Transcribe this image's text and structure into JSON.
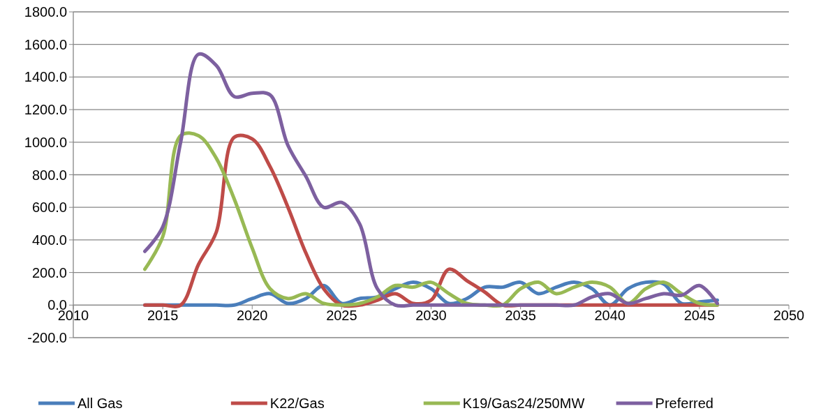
{
  "chart_data": {
    "type": "line",
    "x": [
      2014,
      2015,
      2016,
      2017,
      2018,
      2019,
      2020,
      2021,
      2022,
      2023,
      2024,
      2025,
      2026,
      2027,
      2028,
      2029,
      2030,
      2031,
      2032,
      2033,
      2034,
      2035,
      2036,
      2037,
      2038,
      2039,
      2040,
      2041,
      2042,
      2043,
      2044,
      2045,
      2046
    ],
    "series": [
      {
        "name": "All Gas",
        "color": "#4a7ebb",
        "values": [
          0,
          0,
          0,
          0,
          0,
          0,
          40,
          70,
          10,
          40,
          120,
          10,
          40,
          50,
          100,
          140,
          100,
          10,
          40,
          110,
          110,
          140,
          70,
          110,
          140,
          100,
          0,
          100,
          140,
          130,
          10,
          20,
          30
        ]
      },
      {
        "name": "K22/Gas",
        "color": "#be4b48",
        "values": [
          0,
          0,
          0,
          250,
          450,
          1030,
          1020,
          850,
          600,
          320,
          100,
          0,
          0,
          30,
          70,
          10,
          30,
          220,
          150,
          80,
          0,
          0,
          0,
          0,
          0,
          0,
          0,
          0,
          0,
          0,
          0,
          0,
          0
        ]
      },
      {
        "name": "K19/Gas24/250MW",
        "color": "#98b954",
        "values": [
          220,
          420,
          1040,
          1040,
          900,
          650,
          350,
          100,
          40,
          70,
          10,
          0,
          10,
          50,
          120,
          110,
          140,
          70,
          10,
          0,
          0,
          100,
          140,
          70,
          110,
          140,
          110,
          10,
          100,
          140,
          70,
          10,
          0
        ]
      },
      {
        "name": "Preferred",
        "color": "#7d60a0",
        "values": [
          330,
          480,
          1000,
          1540,
          1470,
          1280,
          1300,
          1290,
          980,
          790,
          600,
          630,
          500,
          100,
          0,
          0,
          0,
          0,
          0,
          0,
          0,
          0,
          0,
          0,
          0,
          50,
          70,
          10,
          40,
          70,
          60,
          120,
          10
        ]
      }
    ],
    "xlim": [
      2010,
      2050
    ],
    "xticks": [
      2010,
      2015,
      2020,
      2025,
      2030,
      2035,
      2040,
      2045,
      2050
    ],
    "ylim": [
      -200,
      1800
    ],
    "yticks": [
      {
        "value": -200,
        "label": "-200.0"
      },
      {
        "value": 0,
        "label": "0.0"
      },
      {
        "value": 200,
        "label": "200.0"
      },
      {
        "value": 400,
        "label": "400.0"
      },
      {
        "value": 600,
        "label": "600.0"
      },
      {
        "value": 800,
        "label": "800.0"
      },
      {
        "value": 1000,
        "label": "1000.0"
      },
      {
        "value": 1200,
        "label": "1200.0"
      },
      {
        "value": 1400,
        "label": "1400.0"
      },
      {
        "value": 1600,
        "label": "1600.0"
      },
      {
        "value": 1800,
        "label": "1800.0"
      }
    ],
    "grid": "y",
    "legend": "bottom",
    "marker": "none",
    "line_style": "solid"
  }
}
